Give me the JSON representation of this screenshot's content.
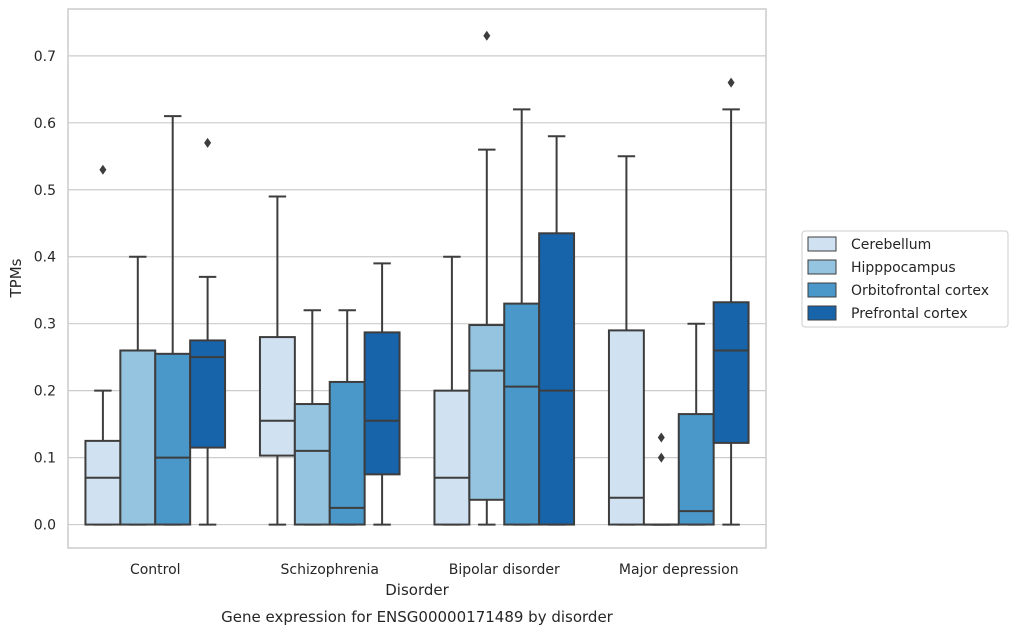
{
  "chart_data": {
    "type": "box",
    "title": "",
    "caption": "Gene expression for ENSG00000171489 by disorder",
    "xlabel": "Disorder",
    "ylabel": "TPMs",
    "ylim": [
      -0.035,
      0.77
    ],
    "yticks": [
      0.0,
      0.1,
      0.2,
      0.3,
      0.4,
      0.5,
      0.6,
      0.7
    ],
    "ytick_labels": [
      "0.0",
      "0.1",
      "0.2",
      "0.3",
      "0.4",
      "0.5",
      "0.6",
      "0.7"
    ],
    "grid": "horizontal",
    "legend_position": "right",
    "categories": [
      "Control",
      "Schizophrenia",
      "Bipolar disorder",
      "Major depression"
    ],
    "series": [
      {
        "name": "Cerebellum",
        "color": "#d0e1f2",
        "boxes": [
          {
            "min": 0.0,
            "q1": 0.0,
            "median": 0.07,
            "q3": 0.125,
            "max": 0.2,
            "outliers": [
              0.53
            ]
          },
          {
            "min": 0.0,
            "q1": 0.103,
            "median": 0.155,
            "q3": 0.28,
            "max": 0.49,
            "outliers": []
          },
          {
            "min": 0.0,
            "q1": 0.0,
            "median": 0.07,
            "q3": 0.2,
            "max": 0.4,
            "outliers": []
          },
          {
            "min": 0.0,
            "q1": 0.0,
            "median": 0.04,
            "q3": 0.29,
            "max": 0.55,
            "outliers": []
          }
        ]
      },
      {
        "name": "Hipppocampus",
        "color": "#94c4df",
        "boxes": [
          {
            "min": 0.0,
            "q1": 0.0,
            "median": 0.26,
            "q3": 0.26,
            "max": 0.4,
            "outliers": []
          },
          {
            "min": 0.0,
            "q1": 0.0,
            "median": 0.11,
            "q3": 0.18,
            "max": 0.32,
            "outliers": []
          },
          {
            "min": 0.0,
            "q1": 0.037,
            "median": 0.23,
            "q3": 0.298,
            "max": 0.56,
            "outliers": [
              0.73
            ]
          },
          {
            "min": 0.0,
            "q1": 0.0,
            "median": 0.0,
            "q3": 0.0,
            "max": 0.0,
            "outliers": [
              0.1,
              0.13
            ]
          }
        ]
      },
      {
        "name": "Orbitofrontal cortex",
        "color": "#4a98c9",
        "boxes": [
          {
            "min": 0.0,
            "q1": 0.0,
            "median": 0.1,
            "q3": 0.255,
            "max": 0.61,
            "outliers": []
          },
          {
            "min": 0.0,
            "q1": 0.0,
            "median": 0.025,
            "q3": 0.213,
            "max": 0.32,
            "outliers": []
          },
          {
            "min": 0.0,
            "q1": 0.0,
            "median": 0.206,
            "q3": 0.33,
            "max": 0.62,
            "outliers": []
          },
          {
            "min": 0.0,
            "q1": 0.0,
            "median": 0.02,
            "q3": 0.165,
            "max": 0.3,
            "outliers": []
          }
        ]
      },
      {
        "name": "Prefrontal cortex",
        "color": "#1764ab",
        "boxes": [
          {
            "min": 0.0,
            "q1": 0.115,
            "median": 0.25,
            "q3": 0.275,
            "max": 0.37,
            "outliers": [
              0.57
            ]
          },
          {
            "min": 0.0,
            "q1": 0.075,
            "median": 0.155,
            "q3": 0.287,
            "max": 0.39,
            "outliers": []
          },
          {
            "min": 0.0,
            "q1": 0.0,
            "median": 0.2,
            "q3": 0.435,
            "max": 0.58,
            "outliers": []
          },
          {
            "min": 0.0,
            "q1": 0.122,
            "median": 0.26,
            "q3": 0.332,
            "max": 0.62,
            "outliers": [
              0.66
            ]
          }
        ]
      }
    ]
  }
}
